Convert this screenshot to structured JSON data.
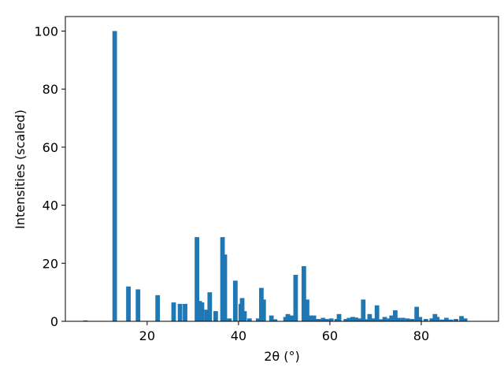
{
  "chart_data": {
    "type": "bar",
    "xlabel": "2θ (°)",
    "ylabel": "Intensities (scaled)",
    "x": [
      6.5,
      12.9,
      15.9,
      18,
      22.3,
      25.8,
      27.2,
      28.3,
      30.9,
      31.5,
      32,
      33,
      33.7,
      35,
      36.5,
      37,
      38,
      39.3,
      40.5,
      40.8,
      41.3,
      42.4,
      44.3,
      45,
      45.5,
      47.2,
      48,
      50.3,
      50.8,
      51.5,
      52,
      52.5,
      54.3,
      55,
      55.8,
      56.5,
      57.5,
      58.5,
      59.3,
      60.3,
      61.5,
      62,
      63.5,
      64.2,
      65,
      65.7,
      66.5,
      67.3,
      68,
      68.7,
      69.5,
      70.3,
      71,
      72,
      73,
      73.5,
      74.3,
      75,
      76,
      77,
      78,
      79,
      79.7,
      81,
      82.3,
      83,
      83.5,
      84.5,
      85.5,
      86.5,
      87.6,
      88.8,
      89.6
    ],
    "values": [
      0.3,
      100,
      12,
      11,
      9,
      6.5,
      6,
      6,
      29,
      7,
      6.5,
      4,
      10,
      3.5,
      29,
      23,
      1,
      14,
      6,
      8,
      3.5,
      1,
      1,
      11.5,
      7.5,
      2,
      0.7,
      1.5,
      2.5,
      2,
      1.5,
      16,
      19,
      7.5,
      2,
      2,
      0.8,
      1.2,
      0.8,
      1,
      0.8,
      2.5,
      0.8,
      1.2,
      1.5,
      1.3,
      1,
      7.5,
      0.7,
      2.5,
      1,
      5.5,
      0.7,
      1.5,
      1,
      2,
      3.8,
      1.2,
      1.2,
      1,
      0.8,
      5,
      1.5,
      0.8,
      1,
      2.5,
      1.5,
      0.6,
      1.2,
      0.6,
      0.8,
      1.8,
      1
    ],
    "bar_width": 1,
    "color": "#1f77b4",
    "xlim": [
      2.1,
      96.9
    ],
    "xticks": [
      20,
      40,
      60,
      80
    ],
    "ylim": [
      0,
      105
    ],
    "yticks": [
      0,
      20,
      40,
      60,
      80,
      100
    ]
  }
}
